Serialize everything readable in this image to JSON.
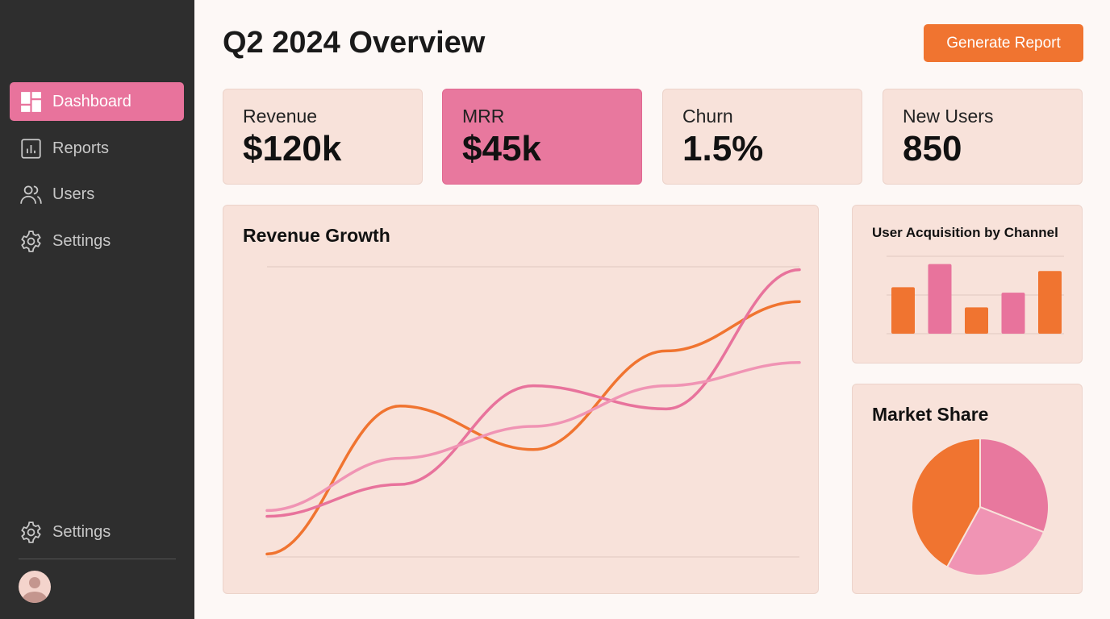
{
  "sidebar": {
    "items": [
      {
        "label": "Dashboard",
        "icon": "dashboard-icon",
        "active": true
      },
      {
        "label": "Reports",
        "icon": "bar-chart-icon"
      },
      {
        "label": "Users",
        "icon": "users-icon"
      },
      {
        "label": "Settings",
        "icon": "gear-icon"
      }
    ],
    "footer_settings": "Settings"
  },
  "header": {
    "title": "Q2 2024 Overview",
    "generate_label": "Generate Report"
  },
  "kpis": [
    {
      "label": "Revenue",
      "value": "$120k"
    },
    {
      "label": "MRR",
      "value": "$45k",
      "highlight": true
    },
    {
      "label": "Churn",
      "value": "1.5%"
    },
    {
      "label": "New Users",
      "value": "850"
    }
  ],
  "colors": {
    "orange": "#f07430",
    "pink": "#e8739c",
    "light_pink": "#f094b4",
    "card": "#f8e2da",
    "sidebar": "#2e2e2e"
  },
  "chart_data": [
    {
      "type": "line",
      "title": "Revenue Growth",
      "x": [
        1,
        2,
        3,
        4,
        5
      ],
      "ylim": [
        0,
        100
      ],
      "grid": true,
      "series": [
        {
          "color": "#f07430",
          "values": [
            1,
            52,
            37,
            71,
            88
          ]
        },
        {
          "color": "#e8739c",
          "values": [
            14,
            25,
            59,
            51,
            99
          ]
        },
        {
          "color": "#f094b4",
          "values": [
            16,
            34,
            45,
            59,
            67
          ]
        }
      ]
    },
    {
      "type": "bar",
      "title": "User Acquisition by Channel",
      "ylim": [
        0,
        100
      ],
      "grid": true,
      "values": [
        60,
        90,
        34,
        53,
        81
      ],
      "colors": [
        "#f07430",
        "#e8739c",
        "#f07430",
        "#e8739c",
        "#f07430"
      ]
    },
    {
      "type": "pie",
      "title": "Market Share",
      "values": [
        31,
        27,
        42
      ],
      "colors": [
        "#e8789e",
        "#f094b4",
        "#f07430"
      ]
    }
  ]
}
